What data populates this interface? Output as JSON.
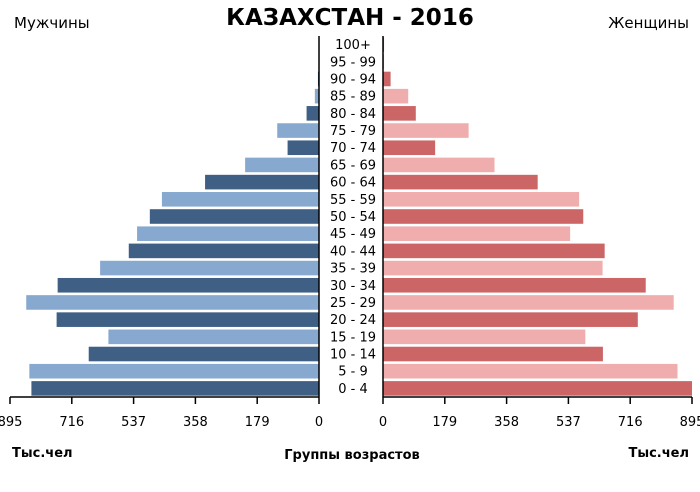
{
  "chart_data": {
    "type": "bar",
    "title": "КАЗАХСТАН - 2016",
    "left_label": "Мужчины",
    "right_label": "Женщины",
    "xlabel": "Группы возрастов",
    "unit_left": "Тыс.чел",
    "unit_right": "Тыс.чел",
    "categories": [
      "100+",
      "95 - 99",
      "90 - 94",
      "85 - 89",
      "80 - 84",
      "75 - 79",
      "70 - 74",
      "65 - 69",
      "60 - 64",
      "55 - 59",
      "50 - 54",
      "45 - 49",
      "40 - 44",
      "35 - 39",
      "30 - 34",
      "25 - 29",
      "20 - 24",
      "15 - 19",
      "10 - 14",
      "5 - 9",
      "0 - 4"
    ],
    "series": [
      {
        "name": "Мужчины",
        "values": [
          1,
          1,
          3,
          12,
          36,
          121,
          91,
          214,
          330,
          455,
          490,
          527,
          551,
          634,
          757,
          848,
          760,
          610,
          667,
          839,
          833
        ]
      },
      {
        "name": "Женщины",
        "values": [
          3,
          3,
          22,
          73,
          95,
          248,
          151,
          323,
          448,
          568,
          580,
          542,
          642,
          636,
          761,
          842,
          738,
          586,
          637,
          853,
          895
        ]
      }
    ],
    "xticks": [
      "895",
      "716",
      "537",
      "358",
      "179",
      "0"
    ],
    "xlim": [
      0,
      895
    ],
    "colors": {
      "male_dark": "#3f5f85",
      "male_light": "#88a9cf",
      "female_dark": "#cc6565",
      "female_light": "#f0adad"
    }
  }
}
